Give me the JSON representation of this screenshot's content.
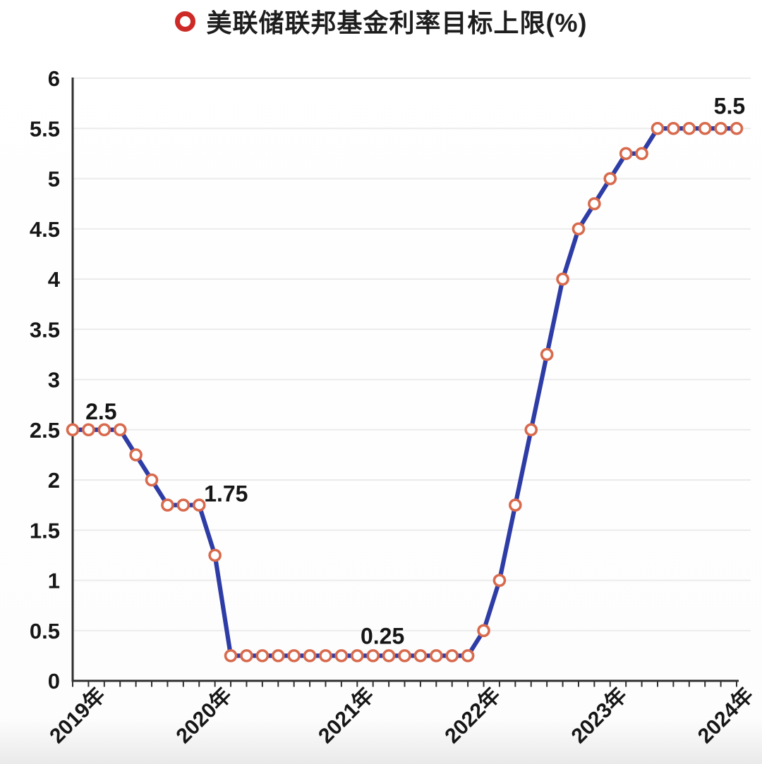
{
  "title": {
    "text": "美联储联邦基金利率目标上限(%)"
  },
  "colors": {
    "line": "#2e3ca6",
    "marker_ring": "#d86a4d",
    "marker_fill": "#ffffff",
    "legend_ring": "#cd2a27",
    "text": "#161616",
    "grid": "#ebebeb",
    "axis": "#2f2f2f"
  },
  "chart_data": {
    "type": "line",
    "title": "美联储联邦基金利率目标上限(%)",
    "unit": "%",
    "ylim": [
      0,
      6
    ],
    "grid": "horizontal",
    "legend_position": "top-center",
    "y_ticks": [
      {
        "label": "0",
        "value": 0
      },
      {
        "label": "0.5",
        "value": 0.5
      },
      {
        "label": "1",
        "value": 1
      },
      {
        "label": "1.5",
        "value": 1.5
      },
      {
        "label": "2",
        "value": 2
      },
      {
        "label": "2.5",
        "value": 2.5
      },
      {
        "label": "3",
        "value": 3
      },
      {
        "label": "3.5",
        "value": 3.5
      },
      {
        "label": "4",
        "value": 4
      },
      {
        "label": "4.5",
        "value": 4.5
      },
      {
        "label": "5",
        "value": 5
      },
      {
        "label": "5.5",
        "value": 5.5
      },
      {
        "label": "6",
        "value": 6
      }
    ],
    "x_year_ticks": [
      {
        "label": "2019年",
        "index": 0
      },
      {
        "label": "2020年",
        "index": 8
      },
      {
        "label": "2021年",
        "index": 17
      },
      {
        "label": "2022年",
        "index": 25
      },
      {
        "label": "2023年",
        "index": 33
      },
      {
        "label": "2024年",
        "index": 41
      }
    ],
    "series": [
      {
        "name": "美联储联邦基金利率目标上限(%)",
        "values": [
          2.5,
          2.5,
          2.5,
          2.5,
          2.25,
          2,
          1.75,
          1.75,
          1.75,
          1.25,
          0.25,
          0.25,
          0.25,
          0.25,
          0.25,
          0.25,
          0.25,
          0.25,
          0.25,
          0.25,
          0.25,
          0.25,
          0.25,
          0.25,
          0.25,
          0.25,
          0.5,
          1,
          1.75,
          2.5,
          3.25,
          4,
          4.5,
          4.75,
          5,
          5.25,
          5.25,
          5.5,
          5.5,
          5.5,
          5.5,
          5.5,
          5.5
        ]
      }
    ],
    "annotations": [
      {
        "text": "2.5",
        "index": 1.8,
        "value": 2.5,
        "dy": -15
      },
      {
        "text": "1.75",
        "index": 9.7,
        "value": 1.75,
        "dy": -5
      },
      {
        "text": "0.25",
        "index": 19.6,
        "value": 0.25,
        "dy": -17
      },
      {
        "text": "5.5",
        "index": 41.55,
        "value": 5.5,
        "dy": -21
      }
    ]
  }
}
